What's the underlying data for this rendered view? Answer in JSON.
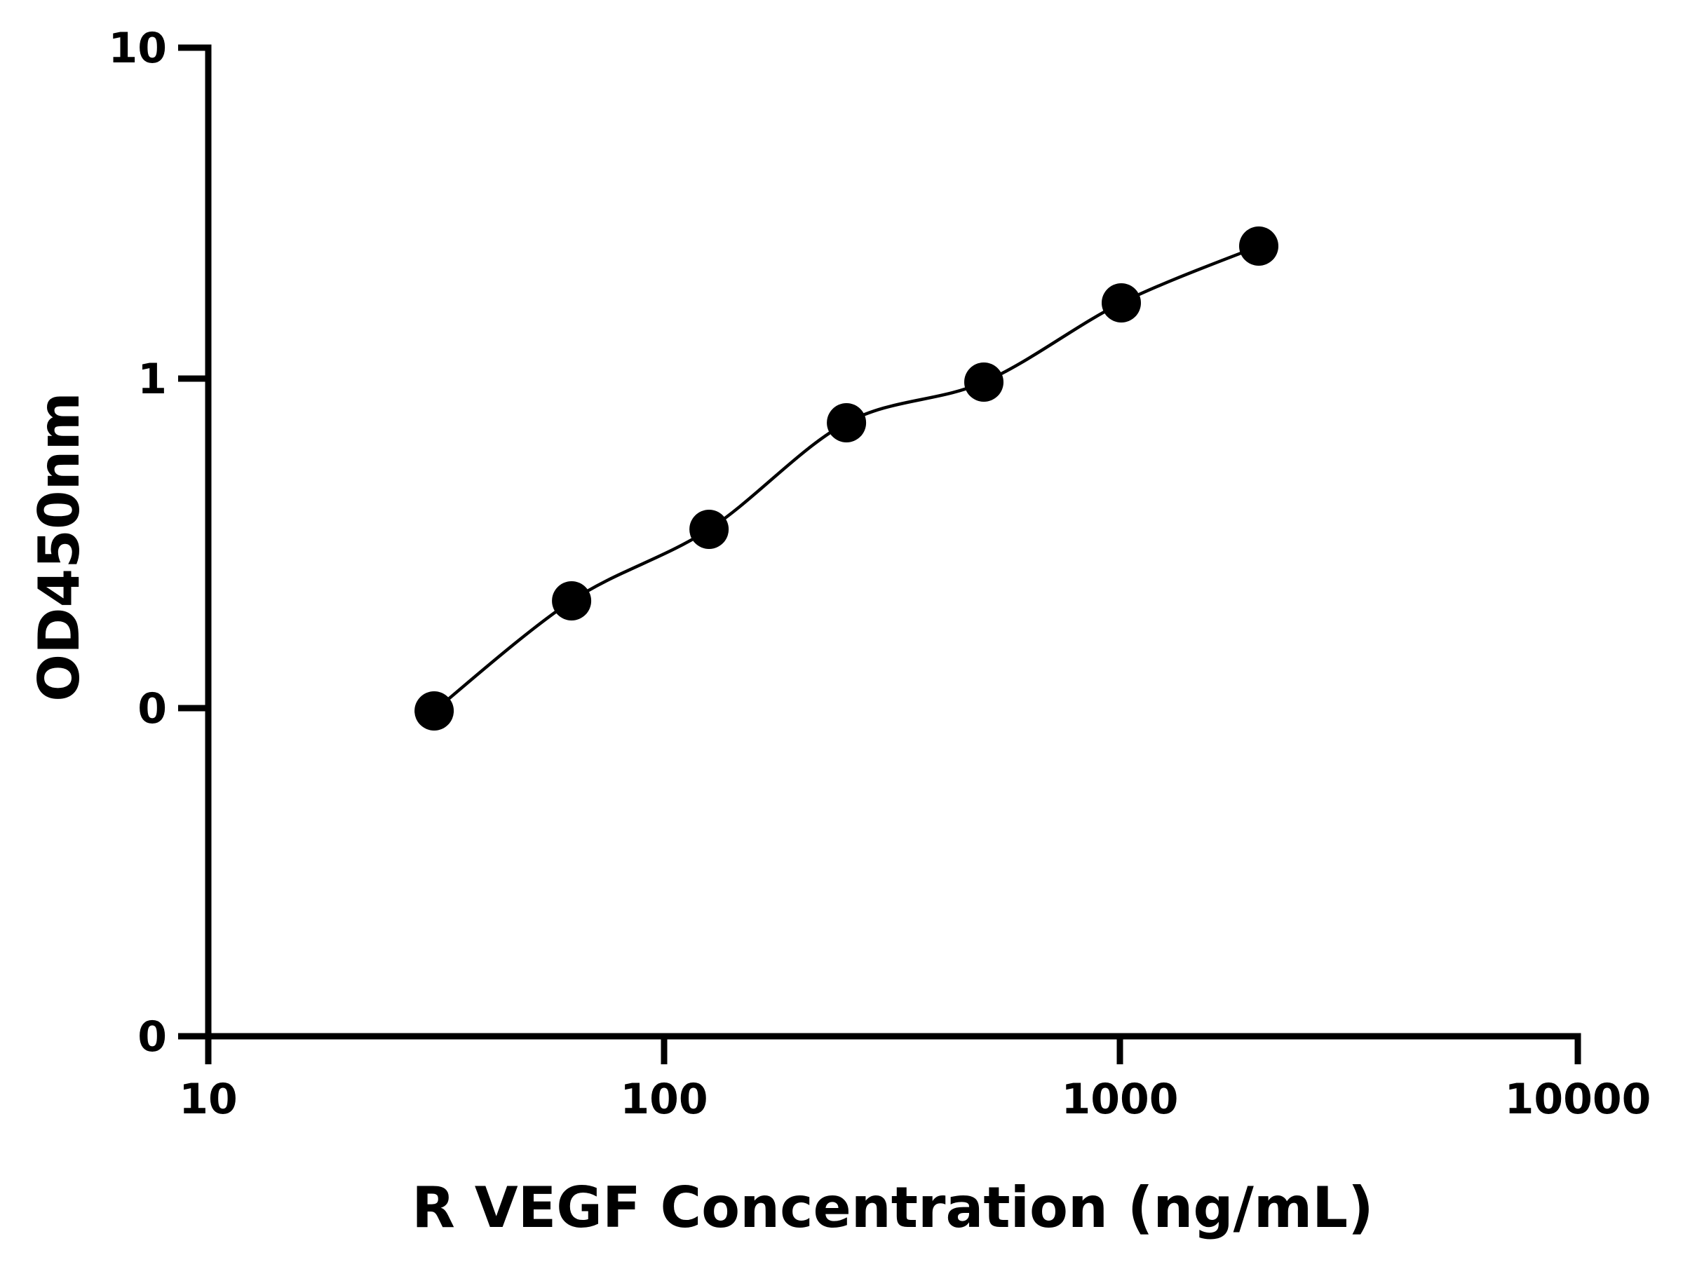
{
  "chart_data": {
    "type": "scatter",
    "title": "",
    "xlabel": "R VEGF Concentration (ng/mL)",
    "ylabel": "OD450nm",
    "x_scale": "log",
    "xlim": [
      10,
      10000
    ],
    "x_ticks": [
      {
        "value": 10,
        "label": "10"
      },
      {
        "value": 100,
        "label": "100"
      },
      {
        "value": 1000,
        "label": "1000"
      },
      {
        "value": 10000,
        "label": "10000"
      }
    ],
    "y_ticks": [
      {
        "label": "0"
      },
      {
        "label": "0"
      },
      {
        "label": "1"
      },
      {
        "label": "10"
      }
    ],
    "grid": false,
    "legend": "none",
    "point_color": "#000000",
    "points": [
      {
        "x": 31.25,
        "y": 0.1
      },
      {
        "x": 62.5,
        "y": 0.2
      },
      {
        "x": 125,
        "y": 0.36
      },
      {
        "x": 250,
        "y": 0.74
      },
      {
        "x": 500,
        "y": 1.04
      },
      {
        "x": 1000,
        "y": 2.0
      },
      {
        "x": 2000,
        "y": 2.95
      }
    ],
    "fit_curve": "smooth"
  }
}
